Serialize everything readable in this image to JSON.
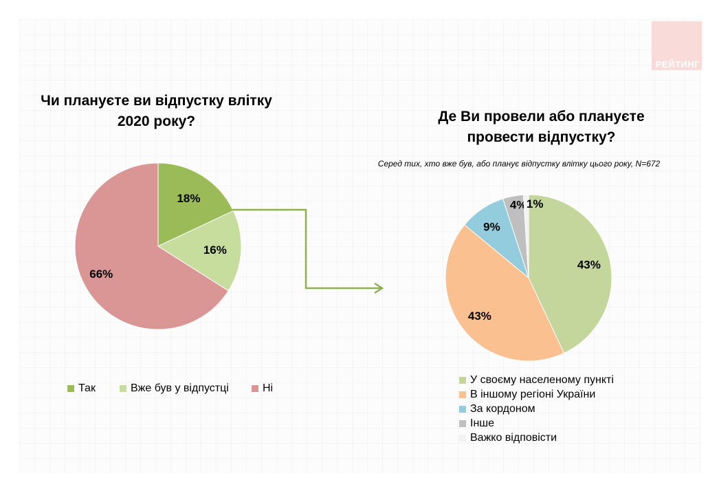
{
  "logo_text": "РЕЙТИНГ",
  "chart_data": [
    {
      "type": "pie",
      "title": "Чи плануєте ви відпустку влітку 2020 року?",
      "title_lines": [
        "Чи плануєте ви відпустку влітку",
        "2020 року?"
      ],
      "categories": [
        "Так",
        "Вже був у відпустці",
        "Ні"
      ],
      "values": [
        18,
        16,
        66
      ],
      "labels": [
        "18%",
        "16%",
        "66%"
      ],
      "colors": [
        "#9bbb59",
        "#c6dd9d",
        "#d99694"
      ],
      "legend_position": "bottom"
    },
    {
      "type": "pie",
      "title": "Де Ви провели або плануєте провести відпустку?",
      "title_lines": [
        "Де Ви провели або плануєте",
        "провести відпустку?"
      ],
      "subtitle": "Серед тих, хто вже був, або планує відпустку влітку цього року, N=672",
      "categories": [
        "У своєму населеному пункті",
        "В іншому регіоні України",
        "За кордоном",
        "Інше",
        "Важко відповісти"
      ],
      "values": [
        43,
        43,
        9,
        4,
        1
      ],
      "labels": [
        "43%",
        "43%",
        "9%",
        "4%",
        "1%"
      ],
      "colors": [
        "#c3d69b",
        "#fac090",
        "#93cddd",
        "#bfbfbf",
        "#f2f2f2"
      ],
      "legend_position": "bottom"
    }
  ]
}
